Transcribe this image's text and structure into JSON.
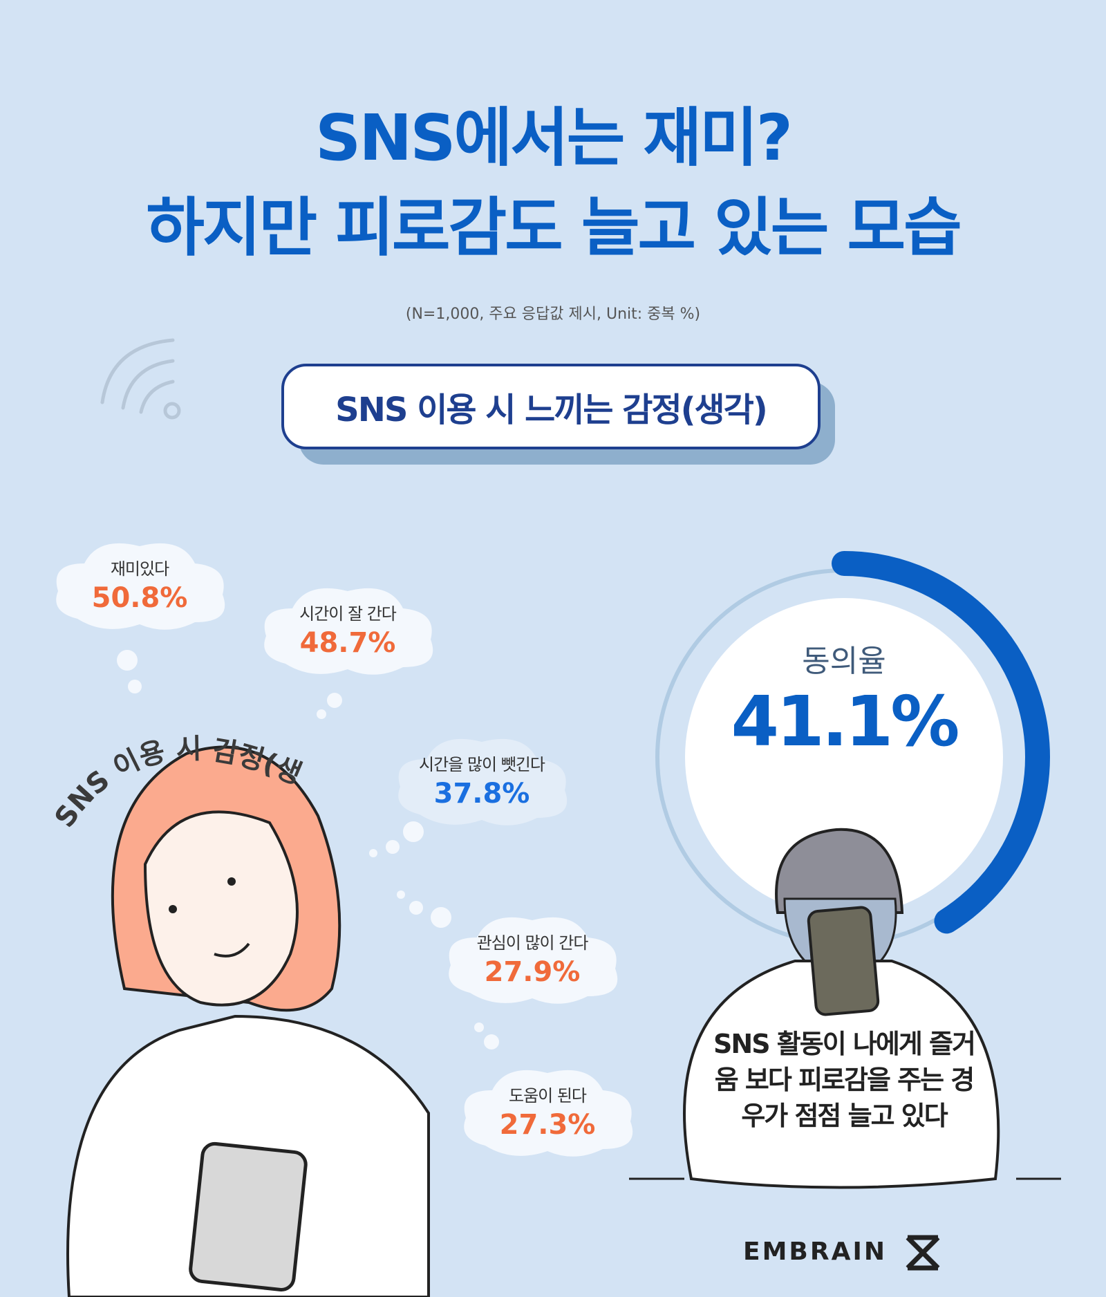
{
  "header": {
    "title_line1": "SNS에서는 재미?",
    "title_line2": "하지만 피로감도 늘고 있는 모습",
    "note": "(N=1,000, 주요 응답값 제시, Unit: 중복 %)"
  },
  "section_button": "SNS 이용 시 느끼는 감정(생각)",
  "curved_label": "SNS 이용 시 감정(생각)",
  "items": [
    {
      "label": "재미있다",
      "value": "50.8%"
    },
    {
      "label": "시간이 잘 간다",
      "value": "48.7%"
    },
    {
      "label": "시간을 많이 뺏긴다",
      "value": "37.8%"
    },
    {
      "label": "관심이 많이 간다",
      "value": "27.9%"
    },
    {
      "label": "도움이 된다",
      "value": "27.3%"
    }
  ],
  "agreement": {
    "label": "동의율",
    "value": "41.1%",
    "percent": 41.1,
    "statement": "SNS 활동이 나에게 즐거움 보다 피로감을 주는 경우가 점점 늘고 있다"
  },
  "brand": "EMBRAIN",
  "colors": {
    "background": "#d3e3f4",
    "title": "#0a5fc4",
    "accent": "#f06a3a",
    "highlight": "#1a6fe0",
    "navy": "#1e3f8f"
  }
}
